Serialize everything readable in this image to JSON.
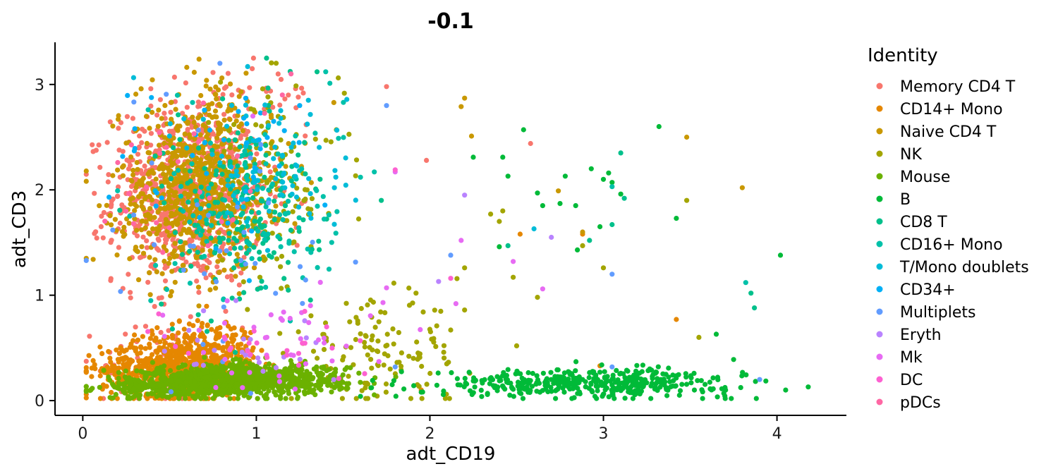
{
  "chart_data": {
    "type": "scatter",
    "title": "-0.1",
    "xlabel": "adt_CD19",
    "ylabel": "adt_CD3",
    "xlim": [
      -0.16,
      4.4
    ],
    "ylim": [
      -0.14,
      3.4
    ],
    "x_ticks": [
      "0",
      "1",
      "2",
      "3",
      "4"
    ],
    "y_ticks": [
      "0",
      "1",
      "2",
      "3"
    ],
    "grid": false,
    "legend_title": "Identity",
    "legend_position": "right",
    "series": [
      {
        "name": "Memory CD4 T",
        "color": "#F8766D",
        "clusters": [
          {
            "cx": 0.62,
            "cy": 1.95,
            "sx": 0.22,
            "sy": 0.42,
            "n": 900
          },
          {
            "cx": 0.45,
            "cy": 0.32,
            "sx": 0.18,
            "sy": 0.22,
            "n": 80
          },
          {
            "cx": 1.0,
            "cy": 2.9,
            "sx": 0.2,
            "sy": 0.15,
            "n": 25
          }
        ],
        "points": [
          [
            1.75,
            2.98
          ],
          [
            2.58,
            2.44
          ],
          [
            1.98,
            2.28
          ]
        ]
      },
      {
        "name": "CD14+ Mono",
        "color": "#E58700",
        "clusters": [
          {
            "cx": 0.55,
            "cy": 0.3,
            "sx": 0.22,
            "sy": 0.13,
            "n": 750
          },
          {
            "cx": 0.7,
            "cy": 0.55,
            "sx": 0.15,
            "sy": 0.12,
            "n": 120
          }
        ],
        "points": [
          [
            2.52,
            1.58
          ],
          [
            3.42,
            0.77
          ],
          [
            2.88,
            1.58
          ],
          [
            2.98,
            0.33
          ],
          [
            1.95,
            0.1
          ]
        ]
      },
      {
        "name": "Naive CD4 T",
        "color": "#C99800",
        "clusters": [
          {
            "cx": 0.65,
            "cy": 2.0,
            "sx": 0.22,
            "sy": 0.38,
            "n": 750
          },
          {
            "cx": 0.75,
            "cy": 2.8,
            "sx": 0.15,
            "sy": 0.2,
            "n": 40
          }
        ],
        "points": [
          [
            0.67,
            3.24
          ],
          [
            2.18,
            2.79
          ],
          [
            2.2,
            2.87
          ],
          [
            3.48,
            2.5
          ],
          [
            3.8,
            2.02
          ],
          [
            2.74,
            1.99
          ],
          [
            2.88,
            1.6
          ],
          [
            2.24,
            2.51
          ]
        ]
      },
      {
        "name": "NK",
        "color": "#A3A500",
        "clusters": [
          {
            "cx": 1.05,
            "cy": 2.05,
            "sx": 0.22,
            "sy": 0.45,
            "n": 150
          },
          {
            "cx": 1.7,
            "cy": 0.45,
            "sx": 0.25,
            "sy": 0.25,
            "n": 130
          }
        ],
        "points": [
          [
            2.35,
            1.77
          ],
          [
            2.42,
            1.8
          ],
          [
            2.2,
            1.26
          ],
          [
            2.62,
            0.98
          ],
          [
            2.5,
            0.52
          ],
          [
            2.48,
            1.17
          ],
          [
            2.88,
            1.47
          ],
          [
            3.0,
            1.26
          ],
          [
            3.55,
            0.6
          ],
          [
            2.12,
            0.67
          ],
          [
            2.2,
            0.86
          ],
          [
            2.4,
            1.7
          ],
          [
            3.48,
            1.9
          ]
        ]
      },
      {
        "name": "Mouse",
        "color": "#6BB100",
        "clusters": [
          {
            "cx": 0.95,
            "cy": 0.2,
            "sx": 0.28,
            "sy": 0.07,
            "n": 900
          },
          {
            "cx": 0.55,
            "cy": 0.12,
            "sx": 0.22,
            "sy": 0.05,
            "n": 300
          }
        ],
        "points": []
      },
      {
        "name": "B",
        "color": "#00BA38",
        "clusters": [
          {
            "cx": 2.9,
            "cy": 0.17,
            "sx": 0.42,
            "sy": 0.065,
            "n": 430
          }
        ],
        "points": [
          [
            2.93,
            2.2
          ],
          [
            2.84,
            1.85
          ],
          [
            2.78,
            2.13
          ],
          [
            2.62,
            1.97
          ],
          [
            2.42,
            2.31
          ],
          [
            2.45,
            2.13
          ],
          [
            2.54,
            2.57
          ],
          [
            2.25,
            2.31
          ],
          [
            3.0,
            2.1
          ],
          [
            3.05,
            2.07
          ],
          [
            2.98,
            1.65
          ],
          [
            3.03,
            2.16
          ],
          [
            3.32,
            2.6
          ],
          [
            3.1,
            1.96
          ],
          [
            2.75,
            1.87
          ],
          [
            2.85,
            1.43
          ],
          [
            2.65,
            1.85
          ],
          [
            2.4,
            1.46
          ],
          [
            1.6,
            0.04
          ],
          [
            4.05,
            0.1
          ],
          [
            4.18,
            0.13
          ],
          [
            3.75,
            0.39
          ],
          [
            3.65,
            0.63
          ],
          [
            4.02,
            1.38
          ],
          [
            3.42,
            1.73
          ],
          [
            1.85,
            0.11
          ],
          [
            1.95,
            0.08
          ]
        ]
      },
      {
        "name": "CD8 T",
        "color": "#00C08B",
        "clusters": [
          {
            "cx": 0.9,
            "cy": 1.8,
            "sx": 0.22,
            "sy": 0.48,
            "n": 180
          }
        ],
        "points": [
          [
            1.35,
            3.12
          ],
          [
            3.1,
            2.35
          ],
          [
            3.12,
            1.92
          ],
          [
            2.92,
            1.52
          ],
          [
            1.72,
            1.9
          ],
          [
            3.85,
            1.02
          ],
          [
            3.87,
            0.88
          ],
          [
            2.45,
            1.47
          ],
          [
            3.05,
            1.67
          ]
        ]
      },
      {
        "name": "CD16+ Mono",
        "color": "#00C1A9",
        "clusters": [
          {
            "cx": 1.0,
            "cy": 1.85,
            "sx": 0.25,
            "sy": 0.45,
            "n": 120
          }
        ],
        "points": [
          [
            1.4,
            3.12
          ],
          [
            3.05,
            2.03
          ],
          [
            3.82,
            1.12
          ],
          [
            1.68,
            2.17
          ],
          [
            1.6,
            2.12
          ]
        ]
      },
      {
        "name": "T/Mono doublets",
        "color": "#00BCD8",
        "clusters": [
          {
            "cx": 1.1,
            "cy": 2.2,
            "sx": 0.25,
            "sy": 0.4,
            "n": 80
          }
        ],
        "points": [
          [
            0.95,
            3.17
          ],
          [
            1.3,
            2.85
          ],
          [
            1.45,
            2.02
          ],
          [
            2.6,
            1.63
          ]
        ]
      },
      {
        "name": "CD34+",
        "color": "#00B0F6",
        "clusters": [
          {
            "cx": 0.8,
            "cy": 2.2,
            "sx": 0.3,
            "sy": 0.45,
            "n": 40
          }
        ],
        "points": [
          [
            1.25,
            2.8
          ],
          [
            1.1,
            2.65
          ]
        ]
      },
      {
        "name": "Multiplets",
        "color": "#619CFF",
        "clusters": [
          {
            "cx": 0.8,
            "cy": 1.5,
            "sx": 0.35,
            "sy": 0.75,
            "n": 40
          }
        ],
        "points": [
          [
            1.75,
            2.8
          ],
          [
            3.05,
            1.2
          ],
          [
            3.9,
            0.2
          ],
          [
            1.8,
            0.32
          ],
          [
            3.05,
            0.32
          ],
          [
            2.12,
            1.38
          ]
        ]
      },
      {
        "name": "Eryth",
        "color": "#B983FF",
        "clusters": [
          {
            "cx": 0.9,
            "cy": 0.5,
            "sx": 0.3,
            "sy": 0.2,
            "n": 25
          }
        ],
        "points": [
          [
            2.7,
            1.55
          ],
          [
            2.2,
            1.95
          ],
          [
            2.05,
            1.13
          ]
        ]
      },
      {
        "name": "Mk",
        "color": "#E76BF3",
        "clusters": [
          {
            "cx": 1.2,
            "cy": 0.6,
            "sx": 0.3,
            "sy": 0.25,
            "n": 40
          }
        ],
        "points": [
          [
            2.48,
            1.32
          ],
          [
            2.65,
            1.06
          ],
          [
            2.18,
            1.52
          ],
          [
            1.8,
            2.17
          ],
          [
            1.75,
            1.07
          ],
          [
            1.73,
            0.93
          ],
          [
            2.15,
            0.92
          ],
          [
            0.98,
            2.7
          ]
        ]
      },
      {
        "name": "DC",
        "color": "#FD61D1",
        "clusters": [
          {
            "cx": 1.1,
            "cy": 0.55,
            "sx": 0.3,
            "sy": 0.2,
            "n": 25
          }
        ],
        "points": [
          [
            1.8,
            2.19
          ],
          [
            2.12,
            1.16
          ]
        ]
      },
      {
        "name": "pDCs",
        "color": "#FF67A4",
        "clusters": [
          {
            "cx": 0.5,
            "cy": 1.9,
            "sx": 0.2,
            "sy": 0.45,
            "n": 25
          }
        ],
        "points": [
          [
            1.15,
            2.9
          ],
          [
            1.2,
            3.1
          ]
        ]
      }
    ]
  }
}
